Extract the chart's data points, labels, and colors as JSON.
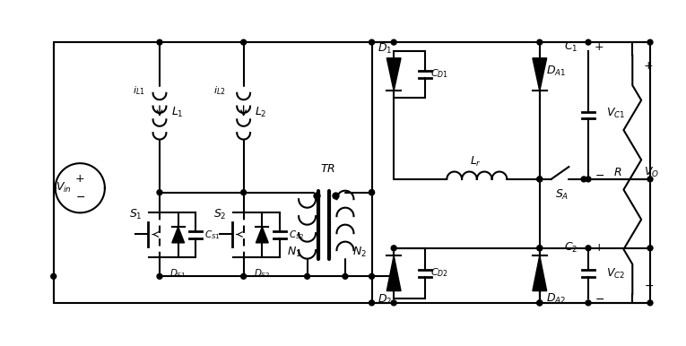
{
  "bg_color": "#ffffff",
  "line_color": "#000000",
  "lw": 1.5,
  "figsize": [
    7.65,
    3.86
  ],
  "dpi": 100
}
